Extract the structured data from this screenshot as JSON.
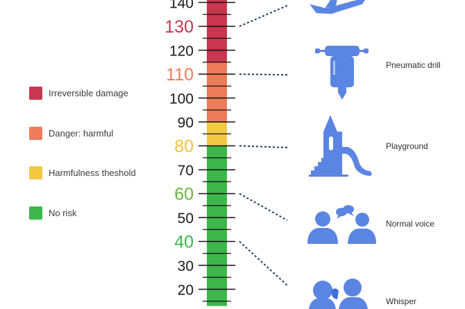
{
  "legend": [
    {
      "label": "Irreversible damage",
      "color": "#c9364f"
    },
    {
      "label": "Danger: harmful",
      "color": "#ec7c5a"
    },
    {
      "label": "Harmfulness theshold",
      "color": "#f3c843"
    },
    {
      "label": "No risk",
      "color": "#3db64a"
    }
  ],
  "scale": {
    "unit": "",
    "visible_min": 13,
    "visible_max": 143,
    "tick_step": 5,
    "labels": [
      {
        "text": "140",
        "value": 140,
        "color": "#1a1a1a"
      },
      {
        "text": "130",
        "value": 130,
        "color": "#c9364f"
      },
      {
        "text": "120",
        "value": 120,
        "color": "#1a1a1a"
      },
      {
        "text": "110",
        "value": 110,
        "color": "#ec7c5a"
      },
      {
        "text": "100",
        "value": 100,
        "color": "#1a1a1a"
      },
      {
        "text": "90",
        "value": 90,
        "color": "#1a1a1a"
      },
      {
        "text": "80",
        "value": 80,
        "color": "#f0c23a"
      },
      {
        "text": "70",
        "value": 70,
        "color": "#1a1a1a"
      },
      {
        "text": "60",
        "value": 60,
        "color": "#6db33f"
      },
      {
        "text": "50",
        "value": 50,
        "color": "#1a1a1a"
      },
      {
        "text": "40",
        "value": 40,
        "color": "#3db64a"
      },
      {
        "text": "30",
        "value": 30,
        "color": "#1a1a1a"
      },
      {
        "text": "20",
        "value": 20,
        "color": "#1a1a1a"
      }
    ],
    "bands": [
      {
        "from": 115,
        "to": 143,
        "color": "#c9364f"
      },
      {
        "from": 90,
        "to": 115,
        "color": "#ec7c5a"
      },
      {
        "from": 80,
        "to": 90,
        "color": "#f3c843"
      },
      {
        "from": 13,
        "to": 80,
        "color": "#3db64a"
      }
    ]
  },
  "sources": [
    {
      "label": "",
      "level": 130,
      "icon": "airplane-icon"
    },
    {
      "label": "Pneumatic drill",
      "level": 110,
      "icon": "pneumatic-drill-icon"
    },
    {
      "label": "Playground",
      "level": 80,
      "icon": "playground-slide-icon"
    },
    {
      "label": "Normal voice",
      "level": 60,
      "icon": "conversation-icon"
    },
    {
      "label": "Whisper",
      "level": 40,
      "icon": "whisper-icon"
    }
  ],
  "icon_color": "#5b85e3",
  "connector_color": "#1f3b57"
}
